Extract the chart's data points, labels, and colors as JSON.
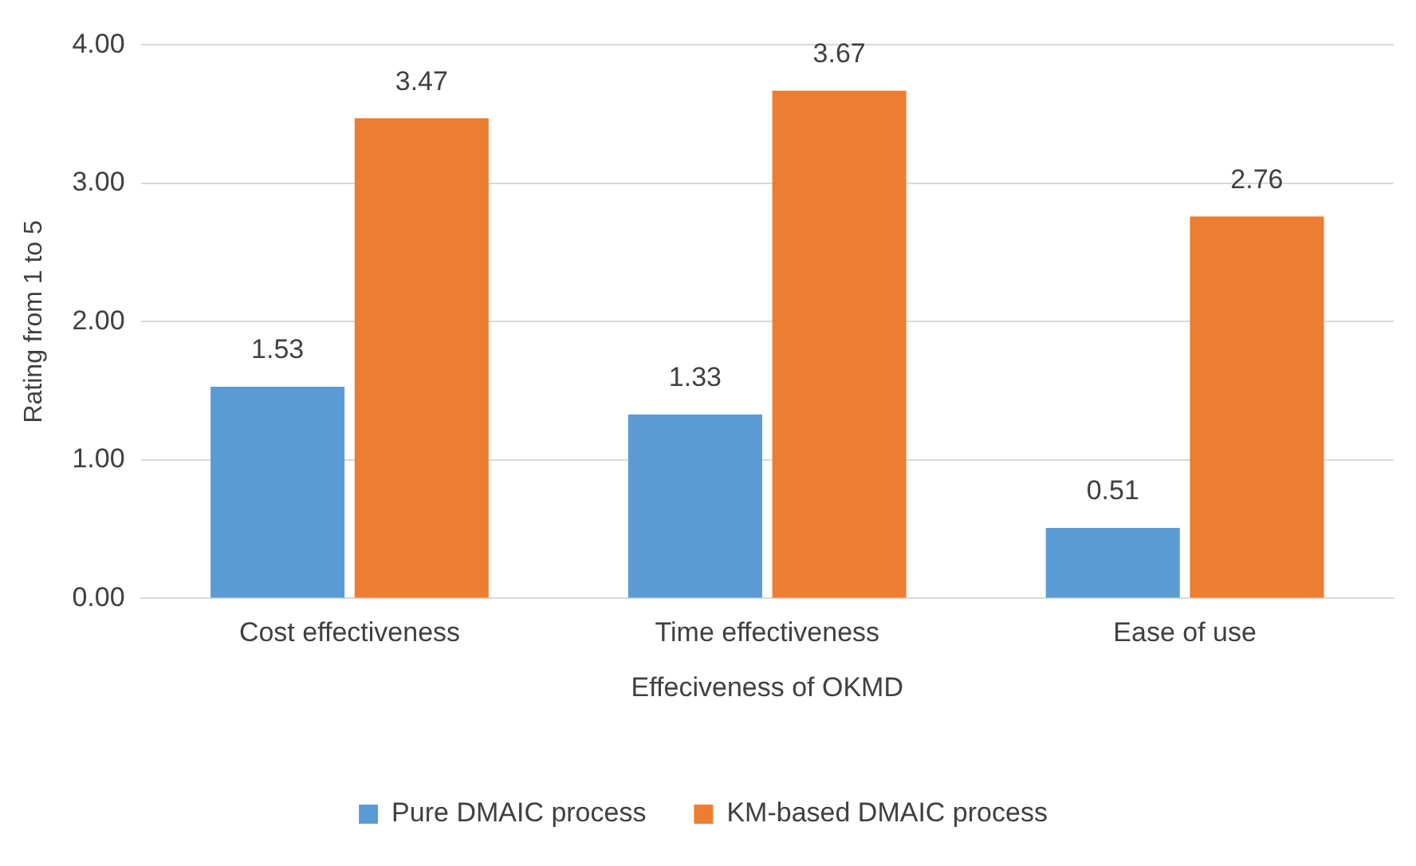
{
  "chart_data": {
    "type": "bar",
    "xlabel": "Effeciveness of OKMD",
    "ylabel": "Rating from 1 to 5",
    "categories": [
      "Cost effectiveness",
      "Time effectiveness",
      "Ease of use"
    ],
    "series": [
      {
        "name": "Pure DMAIC process",
        "color": "#5b9bd5",
        "values": [
          1.53,
          1.33,
          0.51
        ]
      },
      {
        "name": "KM-based DMAIC process",
        "color": "#ed7d31",
        "values": [
          3.47,
          3.67,
          2.76
        ]
      }
    ],
    "ylim": [
      0,
      4
    ],
    "yticks": [
      {
        "value": 0,
        "label": "0.00"
      },
      {
        "value": 1,
        "label": "1.00"
      },
      {
        "value": 2,
        "label": "2.00"
      },
      {
        "value": 3,
        "label": "3.00"
      },
      {
        "value": 4,
        "label": "4.00"
      }
    ],
    "grid": "y",
    "legend": "bottom",
    "data_labels": true
  }
}
